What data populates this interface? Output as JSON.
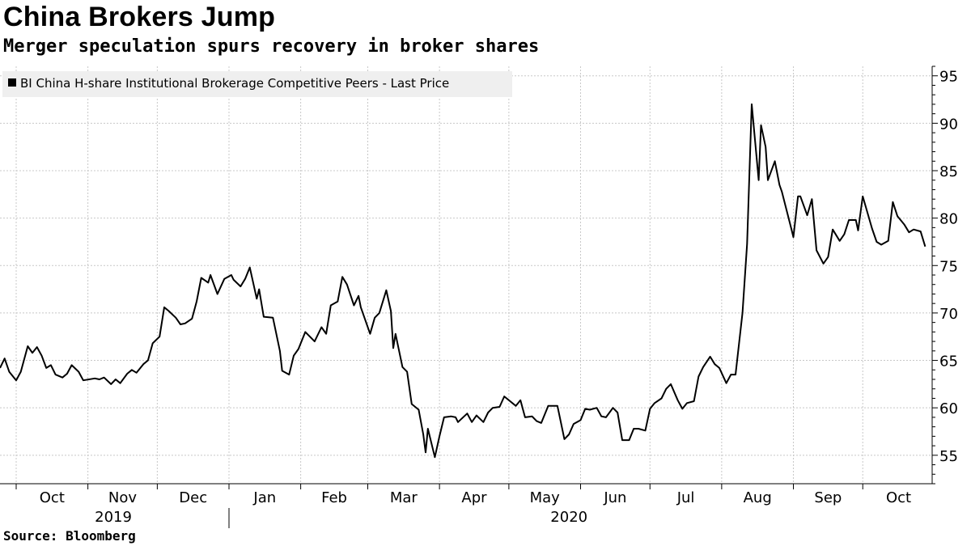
{
  "header": {
    "title": "China Brokers Jump",
    "subtitle": "Merger speculation spurs recovery in broker shares"
  },
  "footer": {
    "source": "Source: Bloomberg"
  },
  "colors": {
    "line": "#000000",
    "grid": "#c8c8c8",
    "legend_bg": "#efefef"
  },
  "chart_data": {
    "type": "line",
    "title": "China Brokers Jump",
    "subtitle": "Merger speculation spurs recovery in broker shares",
    "legend": [
      "BI China H-share Institutional Brokerage Competitive Peers - Last Price"
    ],
    "legend_placement": "top-left",
    "grid": true,
    "y_axis_position": "right",
    "ylim": [
      52,
      96
    ],
    "yticks": [
      55,
      60,
      65,
      70,
      75,
      80,
      85,
      90,
      95
    ],
    "xlim": [
      "2019-09-24",
      "2020-10-31"
    ],
    "month_ticks": [
      {
        "date": "2019-10-01",
        "label": "Oct"
      },
      {
        "date": "2019-11-01",
        "label": "Nov"
      },
      {
        "date": "2019-12-01",
        "label": "Dec"
      },
      {
        "date": "2020-01-01",
        "label": "Jan"
      },
      {
        "date": "2020-02-01",
        "label": "Feb"
      },
      {
        "date": "2020-03-01",
        "label": "Mar"
      },
      {
        "date": "2020-04-01",
        "label": "Apr"
      },
      {
        "date": "2020-05-01",
        "label": "May"
      },
      {
        "date": "2020-06-01",
        "label": "Jun"
      },
      {
        "date": "2020-07-01",
        "label": "Jul"
      },
      {
        "date": "2020-08-01",
        "label": "Aug"
      },
      {
        "date": "2020-09-01",
        "label": "Sep"
      },
      {
        "date": "2020-10-01",
        "label": "Oct"
      }
    ],
    "year_labels": [
      {
        "label": "2019",
        "date": "2019-11-12"
      },
      {
        "label": "2020",
        "date": "2020-05-27"
      }
    ],
    "year_divider": "2020-01-01",
    "series": [
      {
        "name": "BI China H-share Institutional Brokerage Competitive Peers - Last Price",
        "points": [
          [
            "2019-09-24",
            64.2
          ],
          [
            "2019-09-26",
            65.2
          ],
          [
            "2019-09-28",
            63.8
          ],
          [
            "2019-10-01",
            62.9
          ],
          [
            "2019-10-03",
            63.8
          ],
          [
            "2019-10-06",
            66.5
          ],
          [
            "2019-10-08",
            65.8
          ],
          [
            "2019-10-10",
            66.4
          ],
          [
            "2019-10-12",
            65.5
          ],
          [
            "2019-10-14",
            64.2
          ],
          [
            "2019-10-16",
            64.5
          ],
          [
            "2019-10-18",
            63.5
          ],
          [
            "2019-10-21",
            63.2
          ],
          [
            "2019-10-23",
            63.6
          ],
          [
            "2019-10-25",
            64.5
          ],
          [
            "2019-10-28",
            63.8
          ],
          [
            "2019-10-30",
            62.9
          ],
          [
            "2019-11-04",
            63.1
          ],
          [
            "2019-11-06",
            63.0
          ],
          [
            "2019-11-08",
            63.2
          ],
          [
            "2019-11-11",
            62.5
          ],
          [
            "2019-11-13",
            63.0
          ],
          [
            "2019-11-15",
            62.6
          ],
          [
            "2019-11-18",
            63.6
          ],
          [
            "2019-11-20",
            64.0
          ],
          [
            "2019-11-22",
            63.7
          ],
          [
            "2019-11-25",
            64.6
          ],
          [
            "2019-11-27",
            65.0
          ],
          [
            "2019-11-29",
            66.8
          ],
          [
            "2019-12-02",
            67.5
          ],
          [
            "2019-12-04",
            70.6
          ],
          [
            "2019-12-06",
            70.2
          ],
          [
            "2019-12-09",
            69.5
          ],
          [
            "2019-12-11",
            68.8
          ],
          [
            "2019-12-13",
            68.9
          ],
          [
            "2019-12-16",
            69.4
          ],
          [
            "2019-12-18",
            71.2
          ],
          [
            "2019-12-20",
            73.7
          ],
          [
            "2019-12-23",
            73.2
          ],
          [
            "2019-12-24",
            74.0
          ],
          [
            "2019-12-27",
            72.0
          ],
          [
            "2019-12-30",
            73.6
          ],
          [
            "2020-01-02",
            74.0
          ],
          [
            "2020-01-03",
            73.5
          ],
          [
            "2020-01-06",
            72.8
          ],
          [
            "2020-01-08",
            73.6
          ],
          [
            "2020-01-10",
            74.8
          ],
          [
            "2020-01-13",
            71.5
          ],
          [
            "2020-01-14",
            72.5
          ],
          [
            "2020-01-16",
            69.6
          ],
          [
            "2020-01-20",
            69.5
          ],
          [
            "2020-01-23",
            66.0
          ],
          [
            "2020-01-24",
            63.9
          ],
          [
            "2020-01-27",
            63.5
          ],
          [
            "2020-01-29",
            65.5
          ],
          [
            "2020-01-31",
            66.2
          ],
          [
            "2020-02-03",
            68.0
          ],
          [
            "2020-02-05",
            67.5
          ],
          [
            "2020-02-07",
            67.0
          ],
          [
            "2020-02-10",
            68.5
          ],
          [
            "2020-02-12",
            67.8
          ],
          [
            "2020-02-14",
            70.8
          ],
          [
            "2020-02-17",
            71.2
          ],
          [
            "2020-02-19",
            73.8
          ],
          [
            "2020-02-21",
            73.0
          ],
          [
            "2020-02-24",
            70.8
          ],
          [
            "2020-02-26",
            71.8
          ],
          [
            "2020-02-27",
            70.6
          ],
          [
            "2020-03-02",
            67.8
          ],
          [
            "2020-03-04",
            69.5
          ],
          [
            "2020-03-06",
            70.0
          ],
          [
            "2020-03-09",
            72.4
          ],
          [
            "2020-03-11",
            70.2
          ],
          [
            "2020-03-12",
            66.3
          ],
          [
            "2020-03-13",
            67.8
          ],
          [
            "2020-03-16",
            64.3
          ],
          [
            "2020-03-18",
            63.8
          ],
          [
            "2020-03-20",
            60.4
          ],
          [
            "2020-03-23",
            59.8
          ],
          [
            "2020-03-25",
            57.2
          ],
          [
            "2020-03-26",
            55.3
          ],
          [
            "2020-03-27",
            57.8
          ],
          [
            "2020-03-30",
            54.8
          ],
          [
            "2020-04-01",
            57.0
          ],
          [
            "2020-04-03",
            59.0
          ],
          [
            "2020-04-06",
            59.1
          ],
          [
            "2020-04-08",
            59.0
          ],
          [
            "2020-04-09",
            58.5
          ],
          [
            "2020-04-13",
            59.4
          ],
          [
            "2020-04-15",
            58.5
          ],
          [
            "2020-04-17",
            59.2
          ],
          [
            "2020-04-20",
            58.5
          ],
          [
            "2020-04-22",
            59.5
          ],
          [
            "2020-04-24",
            60.0
          ],
          [
            "2020-04-27",
            60.1
          ],
          [
            "2020-04-29",
            61.2
          ],
          [
            "2020-05-04",
            60.2
          ],
          [
            "2020-05-06",
            60.8
          ],
          [
            "2020-05-08",
            59.0
          ],
          [
            "2020-05-11",
            59.1
          ],
          [
            "2020-05-13",
            58.6
          ],
          [
            "2020-05-15",
            58.4
          ],
          [
            "2020-05-18",
            60.2
          ],
          [
            "2020-05-20",
            60.2
          ],
          [
            "2020-05-22",
            60.2
          ],
          [
            "2020-05-25",
            56.7
          ],
          [
            "2020-05-27",
            57.2
          ],
          [
            "2020-05-29",
            58.3
          ],
          [
            "2020-06-01",
            58.7
          ],
          [
            "2020-06-03",
            59.9
          ],
          [
            "2020-06-05",
            59.8
          ],
          [
            "2020-06-08",
            60.0
          ],
          [
            "2020-06-10",
            59.1
          ],
          [
            "2020-06-12",
            59.0
          ],
          [
            "2020-06-15",
            60.0
          ],
          [
            "2020-06-17",
            59.5
          ],
          [
            "2020-06-19",
            56.6
          ],
          [
            "2020-06-22",
            56.6
          ],
          [
            "2020-06-24",
            57.8
          ],
          [
            "2020-06-26",
            57.8
          ],
          [
            "2020-06-29",
            57.6
          ],
          [
            "2020-07-01",
            59.9
          ],
          [
            "2020-07-03",
            60.5
          ],
          [
            "2020-07-06",
            61.0
          ],
          [
            "2020-07-08",
            62.0
          ],
          [
            "2020-07-10",
            62.5
          ],
          [
            "2020-07-13",
            60.8
          ],
          [
            "2020-07-15",
            59.9
          ],
          [
            "2020-07-17",
            60.5
          ],
          [
            "2020-07-20",
            60.7
          ],
          [
            "2020-07-22",
            63.3
          ],
          [
            "2020-07-24",
            64.3
          ],
          [
            "2020-07-27",
            65.4
          ],
          [
            "2020-07-29",
            64.6
          ],
          [
            "2020-07-31",
            64.2
          ],
          [
            "2020-08-03",
            62.6
          ],
          [
            "2020-08-05",
            63.5
          ],
          [
            "2020-08-07",
            63.5
          ],
          [
            "2020-08-10",
            70.0
          ],
          [
            "2020-08-12",
            77.3
          ],
          [
            "2020-08-14",
            92.0
          ],
          [
            "2020-08-17",
            84.0
          ],
          [
            "2020-08-18",
            89.8
          ],
          [
            "2020-08-20",
            87.5
          ],
          [
            "2020-08-21",
            84.0
          ],
          [
            "2020-08-24",
            86.0
          ],
          [
            "2020-08-26",
            83.5
          ],
          [
            "2020-08-27",
            82.8
          ],
          [
            "2020-08-31",
            79.0
          ],
          [
            "2020-09-01",
            78.0
          ],
          [
            "2020-09-03",
            82.3
          ],
          [
            "2020-09-04",
            82.3
          ],
          [
            "2020-09-07",
            80.3
          ],
          [
            "2020-09-09",
            82.0
          ],
          [
            "2020-09-11",
            76.6
          ],
          [
            "2020-09-14",
            75.2
          ],
          [
            "2020-09-16",
            75.9
          ],
          [
            "2020-09-18",
            78.8
          ],
          [
            "2020-09-21",
            77.6
          ],
          [
            "2020-09-23",
            78.3
          ],
          [
            "2020-09-25",
            79.8
          ],
          [
            "2020-09-28",
            79.8
          ],
          [
            "2020-09-29",
            78.7
          ],
          [
            "2020-10-01",
            82.3
          ],
          [
            "2020-10-05",
            78.9
          ],
          [
            "2020-10-07",
            77.5
          ],
          [
            "2020-10-09",
            77.2
          ],
          [
            "2020-10-12",
            77.6
          ],
          [
            "2020-10-14",
            81.7
          ],
          [
            "2020-10-16",
            80.2
          ],
          [
            "2020-10-19",
            79.3
          ],
          [
            "2020-10-21",
            78.5
          ],
          [
            "2020-10-23",
            78.8
          ],
          [
            "2020-10-26",
            78.6
          ],
          [
            "2020-10-28",
            77.0
          ]
        ]
      }
    ]
  }
}
